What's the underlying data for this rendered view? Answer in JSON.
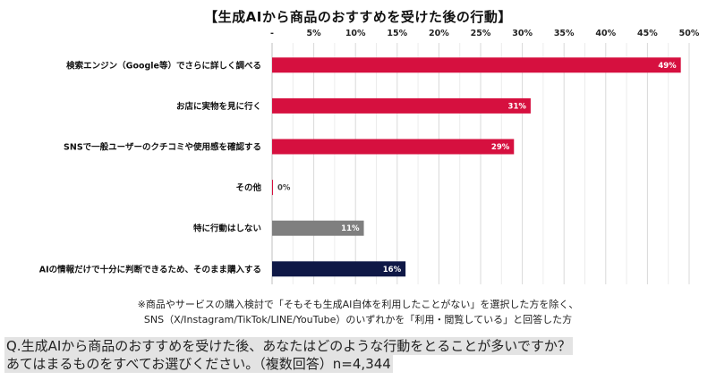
{
  "chart_data": {
    "type": "bar",
    "orientation": "horizontal",
    "title": "【生成AIから商品のおすすめを受けた後の行動】",
    "x_ticks": [
      "-",
      "5%",
      "10%",
      "15%",
      "20%",
      "25%",
      "30%",
      "35%",
      "40%",
      "45%",
      "50%"
    ],
    "xlim": [
      0,
      50
    ],
    "grid": true,
    "categories": [
      "検索エンジン（Google等）でさらに詳しく調べる",
      "お店に実物を見に行く",
      "SNSで一般ユーザーのクチコミや使用感を確認する",
      "その他",
      "特に行動はしない",
      "AIの情報だけで十分に判断できるため、そのまま購入する"
    ],
    "values": [
      49,
      31,
      29,
      0,
      11,
      16
    ],
    "value_labels": [
      "49%",
      "31%",
      "29%",
      "0%",
      "11%",
      "16%"
    ],
    "colors": [
      "#d6103f",
      "#d6103f",
      "#d6103f",
      "#d6103f",
      "#7f7f7f",
      "#0f1846"
    ]
  },
  "notes": {
    "line1": "※商品やサービスの購入検討で「そもそも生成AI自体を利用したことがない」を選択した方を除く、",
    "line2": "SNS（X/Instagram/TikTok/LINE/YouTube）のいずれかを「利用・閲覧している」と回答した方"
  },
  "question": {
    "line1": "Q.生成AIから商品のおすすめを受けた後、あなたはどのような行動をとることが多いですか？",
    "line2": "あてはまるものをすべてお選びください。（複数回答）n=4,344"
  }
}
